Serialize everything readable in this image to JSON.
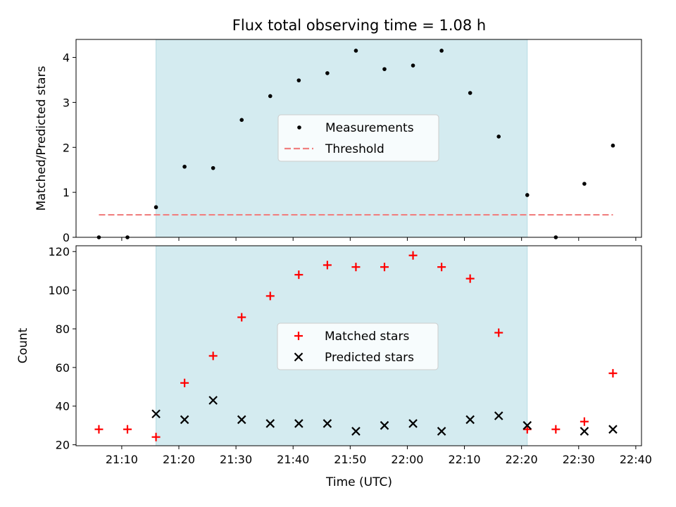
{
  "chart_data": [
    {
      "type": "scatter",
      "title": "Flux total observing time = 1.08 h",
      "ylabel": "Matched/Predicted stars",
      "xlabel": "",
      "xlim": [
        "21:02",
        "22:41"
      ],
      "ylim": [
        0,
        4.4
      ],
      "yticks": [
        "0",
        "1",
        "2",
        "3",
        "4"
      ],
      "shaded_region": {
        "start": "21:16",
        "end": "22:21",
        "color": "#d4ebf0"
      },
      "legend_position": "center",
      "series": [
        {
          "name": "Measurements",
          "marker": "dot",
          "color": "#000000",
          "x": [
            "21:06",
            "21:11",
            "21:16",
            "21:21",
            "21:26",
            "21:31",
            "21:36",
            "21:41",
            "21:46",
            "21:51",
            "21:56",
            "22:01",
            "22:06",
            "22:11",
            "22:16",
            "22:21",
            "22:26",
            "22:31",
            "22:36"
          ],
          "y": [
            0.0,
            0.0,
            0.67,
            1.57,
            1.54,
            2.61,
            3.14,
            3.49,
            3.65,
            4.15,
            3.74,
            3.82,
            4.15,
            3.21,
            2.24,
            0.94,
            0.0,
            1.19,
            2.04
          ]
        },
        {
          "name": "Threshold",
          "style": "dashed",
          "color": "#f08080",
          "x": [
            "21:06",
            "22:36"
          ],
          "y": [
            0.5,
            0.5
          ]
        }
      ]
    },
    {
      "type": "scatter",
      "title": "",
      "ylabel": "Count",
      "xlabel": "Time (UTC)",
      "xlim": [
        "21:02",
        "22:41"
      ],
      "ylim": [
        19.5,
        123
      ],
      "yticks": [
        "20",
        "40",
        "60",
        "80",
        "100",
        "120"
      ],
      "xticks": [
        "21:10",
        "21:20",
        "21:30",
        "21:40",
        "21:50",
        "22:00",
        "22:10",
        "22:20",
        "22:30",
        "22:40"
      ],
      "shaded_region": {
        "start": "21:16",
        "end": "22:21",
        "color": "#d4ebf0"
      },
      "legend_position": "center",
      "series": [
        {
          "name": "Matched stars",
          "marker": "plus",
          "color": "#ff0000",
          "x": [
            "21:06",
            "21:11",
            "21:16",
            "21:21",
            "21:26",
            "21:31",
            "21:36",
            "21:41",
            "21:46",
            "21:51",
            "21:56",
            "22:01",
            "22:06",
            "22:11",
            "22:16",
            "22:21",
            "22:26",
            "22:31",
            "22:36"
          ],
          "y": [
            28,
            28,
            24,
            52,
            66,
            86,
            97,
            108,
            113,
            112,
            112,
            118,
            112,
            106,
            78,
            28,
            28,
            32,
            57
          ]
        },
        {
          "name": "Predicted stars",
          "marker": "x",
          "color": "#000000",
          "x": [
            "21:16",
            "21:21",
            "21:26",
            "21:31",
            "21:36",
            "21:41",
            "21:46",
            "21:51",
            "21:56",
            "22:01",
            "22:06",
            "22:11",
            "22:16",
            "22:21",
            "22:31",
            "22:36"
          ],
          "y": [
            36,
            33,
            43,
            33,
            31,
            31,
            31,
            27,
            30,
            31,
            27,
            33,
            35,
            30,
            27,
            28
          ]
        }
      ]
    }
  ]
}
